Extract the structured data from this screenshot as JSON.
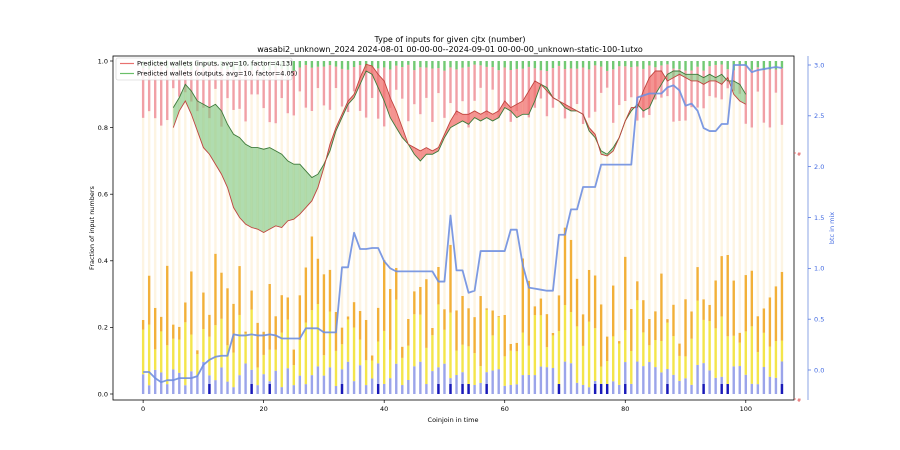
{
  "chart_data": {
    "type": "bar",
    "title": "Type of inputs for given cjtx (number)",
    "subtitle": "wasabi2_unknown_2024 2024-08-01 00-00-00--2024-09-01 00-00-00_unknown-static-100-1utxo",
    "xlabel": "Coinjoin in time",
    "ylabel": "Fraction of input numbers",
    "y2label": "btc in mix",
    "xlim": [
      -5,
      108
    ],
    "ylim": [
      0,
      1.0
    ],
    "y2lim": [
      -0.3,
      3.05
    ],
    "xticks": [
      0,
      20,
      40,
      60,
      80,
      100
    ],
    "yticks": [
      0.0,
      0.2,
      0.4,
      0.6,
      0.8,
      1.0
    ],
    "y2ticks": [
      0.0,
      0.5,
      1.0,
      1.5,
      2.0,
      2.5,
      3.0
    ],
    "grid": false,
    "legend_position": "top-left",
    "legend": [
      {
        "label": "Predicted wallets (inputs, avg=10, factor=4.13)",
        "color": "#e8716f"
      },
      {
        "label": "Predicted wallets (outputs, avg=10, factor=4.05)",
        "color": "#6abf69"
      }
    ],
    "stack_series": [
      {
        "name": "",
        "color": "#8a94e6"
      },
      {
        "name": "",
        "color": "#f2e12c"
      },
      {
        "name": "",
        "color": "#f0a216"
      },
      {
        "name": "",
        "color": "#fdf3df"
      },
      {
        "name": "",
        "color": "#ef8f96"
      },
      {
        "name": "",
        "color": "#59bf5a"
      }
    ],
    "right_axis_marks": [
      "#",
      "#"
    ],
    "inputs_wallets": [
      {
        "x": 5,
        "y": 0.8
      },
      {
        "x": 6,
        "y": 0.85
      },
      {
        "x": 7,
        "y": 0.88
      },
      {
        "x": 8,
        "y": 0.84
      },
      {
        "x": 9,
        "y": 0.79
      },
      {
        "x": 10,
        "y": 0.74
      },
      {
        "x": 11,
        "y": 0.72
      },
      {
        "x": 12,
        "y": 0.69
      },
      {
        "x": 13,
        "y": 0.66
      },
      {
        "x": 14,
        "y": 0.62
      },
      {
        "x": 15,
        "y": 0.56
      },
      {
        "x": 16,
        "y": 0.53
      },
      {
        "x": 17,
        "y": 0.51
      },
      {
        "x": 18,
        "y": 0.5
      },
      {
        "x": 19,
        "y": 0.495
      },
      {
        "x": 20,
        "y": 0.485
      },
      {
        "x": 21,
        "y": 0.495
      },
      {
        "x": 22,
        "y": 0.505
      },
      {
        "x": 23,
        "y": 0.5
      },
      {
        "x": 24,
        "y": 0.52
      },
      {
        "x": 25,
        "y": 0.525
      },
      {
        "x": 26,
        "y": 0.54
      },
      {
        "x": 27,
        "y": 0.56
      },
      {
        "x": 28,
        "y": 0.58
      },
      {
        "x": 29,
        "y": 0.62
      },
      {
        "x": 30,
        "y": 0.68
      },
      {
        "x": 31,
        "y": 0.75
      },
      {
        "x": 32,
        "y": 0.8
      },
      {
        "x": 33,
        "y": 0.84
      },
      {
        "x": 34,
        "y": 0.88
      },
      {
        "x": 35,
        "y": 0.9
      },
      {
        "x": 36,
        "y": 0.95
      },
      {
        "x": 37,
        "y": 0.99
      },
      {
        "x": 38,
        "y": 0.985
      },
      {
        "x": 39,
        "y": 0.96
      },
      {
        "x": 40,
        "y": 0.94
      },
      {
        "x": 41,
        "y": 0.89
      },
      {
        "x": 42,
        "y": 0.85
      },
      {
        "x": 43,
        "y": 0.8
      },
      {
        "x": 44,
        "y": 0.75
      },
      {
        "x": 45,
        "y": 0.74
      },
      {
        "x": 46,
        "y": 0.73
      },
      {
        "x": 47,
        "y": 0.74
      },
      {
        "x": 48,
        "y": 0.73
      },
      {
        "x": 49,
        "y": 0.74
      },
      {
        "x": 50,
        "y": 0.78
      },
      {
        "x": 51,
        "y": 0.82
      },
      {
        "x": 52,
        "y": 0.85
      },
      {
        "x": 53,
        "y": 0.84
      },
      {
        "x": 54,
        "y": 0.84
      },
      {
        "x": 55,
        "y": 0.85
      },
      {
        "x": 56,
        "y": 0.84
      },
      {
        "x": 57,
        "y": 0.85
      },
      {
        "x": 58,
        "y": 0.84
      },
      {
        "x": 59,
        "y": 0.85
      },
      {
        "x": 60,
        "y": 0.88
      },
      {
        "x": 61,
        "y": 0.86
      },
      {
        "x": 62,
        "y": 0.87
      },
      {
        "x": 63,
        "y": 0.88
      },
      {
        "x": 64,
        "y": 0.91
      },
      {
        "x": 65,
        "y": 0.94
      },
      {
        "x": 66,
        "y": 0.93
      },
      {
        "x": 67,
        "y": 0.91
      },
      {
        "x": 68,
        "y": 0.89
      },
      {
        "x": 69,
        "y": 0.88
      },
      {
        "x": 70,
        "y": 0.87
      },
      {
        "x": 71,
        "y": 0.86
      },
      {
        "x": 72,
        "y": 0.85
      },
      {
        "x": 73,
        "y": 0.84
      },
      {
        "x": 74,
        "y": 0.8
      },
      {
        "x": 75,
        "y": 0.78
      },
      {
        "x": 76,
        "y": 0.72
      },
      {
        "x": 77,
        "y": 0.715
      },
      {
        "x": 78,
        "y": 0.73
      },
      {
        "x": 79,
        "y": 0.77
      },
      {
        "x": 80,
        "y": 0.82
      },
      {
        "x": 81,
        "y": 0.86
      },
      {
        "x": 82,
        "y": 0.86
      },
      {
        "x": 83,
        "y": 0.91
      },
      {
        "x": 84,
        "y": 0.95
      },
      {
        "x": 85,
        "y": 0.97
      },
      {
        "x": 86,
        "y": 0.97
      },
      {
        "x": 87,
        "y": 0.94
      },
      {
        "x": 88,
        "y": 0.95
      },
      {
        "x": 89,
        "y": 0.96
      },
      {
        "x": 90,
        "y": 0.95
      },
      {
        "x": 91,
        "y": 0.94
      },
      {
        "x": 92,
        "y": 0.94
      },
      {
        "x": 93,
        "y": 0.93
      },
      {
        "x": 94,
        "y": 0.94
      },
      {
        "x": 95,
        "y": 0.94
      },
      {
        "x": 96,
        "y": 0.93
      },
      {
        "x": 97,
        "y": 0.95
      },
      {
        "x": 98,
        "y": 0.9
      },
      {
        "x": 99,
        "y": 0.88
      },
      {
        "x": 100,
        "y": 0.87
      }
    ],
    "outputs_wallets": [
      {
        "x": 5,
        "y": 0.86
      },
      {
        "x": 6,
        "y": 0.89
      },
      {
        "x": 7,
        "y": 0.93
      },
      {
        "x": 8,
        "y": 0.91
      },
      {
        "x": 9,
        "y": 0.88
      },
      {
        "x": 10,
        "y": 0.87
      },
      {
        "x": 11,
        "y": 0.86
      },
      {
        "x": 12,
        "y": 0.87
      },
      {
        "x": 13,
        "y": 0.85
      },
      {
        "x": 14,
        "y": 0.81
      },
      {
        "x": 15,
        "y": 0.78
      },
      {
        "x": 16,
        "y": 0.77
      },
      {
        "x": 17,
        "y": 0.75
      },
      {
        "x": 18,
        "y": 0.74
      },
      {
        "x": 19,
        "y": 0.74
      },
      {
        "x": 20,
        "y": 0.735
      },
      {
        "x": 21,
        "y": 0.74
      },
      {
        "x": 22,
        "y": 0.73
      },
      {
        "x": 23,
        "y": 0.72
      },
      {
        "x": 24,
        "y": 0.7
      },
      {
        "x": 25,
        "y": 0.69
      },
      {
        "x": 26,
        "y": 0.69
      },
      {
        "x": 27,
        "y": 0.67
      },
      {
        "x": 28,
        "y": 0.65
      },
      {
        "x": 29,
        "y": 0.66
      },
      {
        "x": 30,
        "y": 0.69
      },
      {
        "x": 31,
        "y": 0.73
      },
      {
        "x": 32,
        "y": 0.79
      },
      {
        "x": 33,
        "y": 0.83
      },
      {
        "x": 34,
        "y": 0.87
      },
      {
        "x": 35,
        "y": 0.89
      },
      {
        "x": 36,
        "y": 0.93
      },
      {
        "x": 37,
        "y": 0.97
      },
      {
        "x": 38,
        "y": 0.96
      },
      {
        "x": 39,
        "y": 0.92
      },
      {
        "x": 40,
        "y": 0.88
      },
      {
        "x": 41,
        "y": 0.83
      },
      {
        "x": 42,
        "y": 0.8
      },
      {
        "x": 43,
        "y": 0.77
      },
      {
        "x": 44,
        "y": 0.75
      },
      {
        "x": 45,
        "y": 0.72
      },
      {
        "x": 46,
        "y": 0.7
      },
      {
        "x": 47,
        "y": 0.72
      },
      {
        "x": 48,
        "y": 0.72
      },
      {
        "x": 49,
        "y": 0.73
      },
      {
        "x": 50,
        "y": 0.77
      },
      {
        "x": 51,
        "y": 0.8
      },
      {
        "x": 52,
        "y": 0.81
      },
      {
        "x": 53,
        "y": 0.82
      },
      {
        "x": 54,
        "y": 0.81
      },
      {
        "x": 55,
        "y": 0.83
      },
      {
        "x": 56,
        "y": 0.82
      },
      {
        "x": 57,
        "y": 0.83
      },
      {
        "x": 58,
        "y": 0.82
      },
      {
        "x": 59,
        "y": 0.83
      },
      {
        "x": 60,
        "y": 0.86
      },
      {
        "x": 61,
        "y": 0.85
      },
      {
        "x": 62,
        "y": 0.83
      },
      {
        "x": 63,
        "y": 0.84
      },
      {
        "x": 64,
        "y": 0.84
      },
      {
        "x": 65,
        "y": 0.88
      },
      {
        "x": 66,
        "y": 0.93
      },
      {
        "x": 67,
        "y": 0.92
      },
      {
        "x": 68,
        "y": 0.89
      },
      {
        "x": 69,
        "y": 0.88
      },
      {
        "x": 70,
        "y": 0.86
      },
      {
        "x": 71,
        "y": 0.85
      },
      {
        "x": 72,
        "y": 0.85
      },
      {
        "x": 73,
        "y": 0.84
      },
      {
        "x": 74,
        "y": 0.79
      },
      {
        "x": 75,
        "y": 0.77
      },
      {
        "x": 76,
        "y": 0.73
      },
      {
        "x": 77,
        "y": 0.72
      },
      {
        "x": 78,
        "y": 0.74
      },
      {
        "x": 79,
        "y": 0.77
      },
      {
        "x": 80,
        "y": 0.82
      },
      {
        "x": 81,
        "y": 0.85
      },
      {
        "x": 82,
        "y": 0.87
      },
      {
        "x": 83,
        "y": 0.85
      },
      {
        "x": 84,
        "y": 0.86
      },
      {
        "x": 85,
        "y": 0.9
      },
      {
        "x": 86,
        "y": 0.93
      },
      {
        "x": 87,
        "y": 0.96
      },
      {
        "x": 88,
        "y": 0.97
      },
      {
        "x": 89,
        "y": 0.97
      },
      {
        "x": 90,
        "y": 0.96
      },
      {
        "x": 91,
        "y": 0.96
      },
      {
        "x": 92,
        "y": 0.96
      },
      {
        "x": 93,
        "y": 0.95
      },
      {
        "x": 94,
        "y": 0.96
      },
      {
        "x": 95,
        "y": 0.95
      },
      {
        "x": 96,
        "y": 0.96
      },
      {
        "x": 97,
        "y": 0.94
      },
      {
        "x": 98,
        "y": 0.94
      },
      {
        "x": 99,
        "y": 0.93
      },
      {
        "x": 100,
        "y": 0.9
      }
    ],
    "btc_in_mix": [
      {
        "x": 0,
        "y": -0.02
      },
      {
        "x": 1,
        "y": -0.02
      },
      {
        "x": 2,
        "y": -0.08
      },
      {
        "x": 3,
        "y": -0.12
      },
      {
        "x": 4,
        "y": -0.1
      },
      {
        "x": 5,
        "y": -0.1
      },
      {
        "x": 6,
        "y": -0.08
      },
      {
        "x": 7,
        "y": -0.08
      },
      {
        "x": 8,
        "y": -0.08
      },
      {
        "x": 9,
        "y": -0.06
      },
      {
        "x": 10,
        "y": 0.05
      },
      {
        "x": 11,
        "y": 0.1
      },
      {
        "x": 12,
        "y": 0.13
      },
      {
        "x": 13,
        "y": 0.14
      },
      {
        "x": 14,
        "y": 0.14
      },
      {
        "x": 15,
        "y": 0.35
      },
      {
        "x": 16,
        "y": 0.34
      },
      {
        "x": 17,
        "y": 0.34
      },
      {
        "x": 18,
        "y": 0.35
      },
      {
        "x": 19,
        "y": 0.34
      },
      {
        "x": 20,
        "y": 0.34
      },
      {
        "x": 21,
        "y": 0.35
      },
      {
        "x": 22,
        "y": 0.34
      },
      {
        "x": 23,
        "y": 0.31
      },
      {
        "x": 24,
        "y": 0.31
      },
      {
        "x": 25,
        "y": 0.31
      },
      {
        "x": 26,
        "y": 0.31
      },
      {
        "x": 27,
        "y": 0.41
      },
      {
        "x": 28,
        "y": 0.41
      },
      {
        "x": 29,
        "y": 0.41
      },
      {
        "x": 30,
        "y": 0.37
      },
      {
        "x": 31,
        "y": 0.37
      },
      {
        "x": 32,
        "y": 0.37
      },
      {
        "x": 33,
        "y": 1.01
      },
      {
        "x": 34,
        "y": 1.01
      },
      {
        "x": 35,
        "y": 1.35
      },
      {
        "x": 36,
        "y": 1.19
      },
      {
        "x": 37,
        "y": 1.19
      },
      {
        "x": 38,
        "y": 1.2
      },
      {
        "x": 39,
        "y": 1.2
      },
      {
        "x": 40,
        "y": 1.07
      },
      {
        "x": 41,
        "y": 1.0
      },
      {
        "x": 42,
        "y": 0.97
      },
      {
        "x": 43,
        "y": 0.97
      },
      {
        "x": 44,
        "y": 0.97
      },
      {
        "x": 45,
        "y": 0.97
      },
      {
        "x": 46,
        "y": 0.97
      },
      {
        "x": 47,
        "y": 0.97
      },
      {
        "x": 48,
        "y": 0.97
      },
      {
        "x": 49,
        "y": 0.87
      },
      {
        "x": 50,
        "y": 0.87
      },
      {
        "x": 51,
        "y": 1.52
      },
      {
        "x": 52,
        "y": 0.98
      },
      {
        "x": 53,
        "y": 0.98
      },
      {
        "x": 54,
        "y": 0.76
      },
      {
        "x": 55,
        "y": 0.78
      },
      {
        "x": 56,
        "y": 1.17
      },
      {
        "x": 57,
        "y": 1.17
      },
      {
        "x": 58,
        "y": 1.17
      },
      {
        "x": 59,
        "y": 1.17
      },
      {
        "x": 60,
        "y": 1.17
      },
      {
        "x": 61,
        "y": 1.38
      },
      {
        "x": 62,
        "y": 1.38
      },
      {
        "x": 63,
        "y": 1.03
      },
      {
        "x": 64,
        "y": 0.81
      },
      {
        "x": 65,
        "y": 0.8
      },
      {
        "x": 66,
        "y": 0.79
      },
      {
        "x": 67,
        "y": 0.78
      },
      {
        "x": 68,
        "y": 0.78
      },
      {
        "x": 69,
        "y": 1.33
      },
      {
        "x": 70,
        "y": 1.33
      },
      {
        "x": 71,
        "y": 1.58
      },
      {
        "x": 72,
        "y": 1.58
      },
      {
        "x": 73,
        "y": 1.8
      },
      {
        "x": 74,
        "y": 1.8
      },
      {
        "x": 75,
        "y": 1.8
      },
      {
        "x": 76,
        "y": 2.02
      },
      {
        "x": 77,
        "y": 2.02
      },
      {
        "x": 78,
        "y": 2.02
      },
      {
        "x": 79,
        "y": 2.02
      },
      {
        "x": 80,
        "y": 2.02
      },
      {
        "x": 81,
        "y": 2.02
      },
      {
        "x": 82,
        "y": 2.68
      },
      {
        "x": 83,
        "y": 2.7
      },
      {
        "x": 84,
        "y": 2.72
      },
      {
        "x": 85,
        "y": 2.72
      },
      {
        "x": 86,
        "y": 2.72
      },
      {
        "x": 87,
        "y": 2.78
      },
      {
        "x": 88,
        "y": 2.8
      },
      {
        "x": 89,
        "y": 2.75
      },
      {
        "x": 90,
        "y": 2.6
      },
      {
        "x": 91,
        "y": 2.62
      },
      {
        "x": 92,
        "y": 2.55
      },
      {
        "x": 93,
        "y": 2.38
      },
      {
        "x": 94,
        "y": 2.35
      },
      {
        "x": 95,
        "y": 2.35
      },
      {
        "x": 96,
        "y": 2.42
      },
      {
        "x": 97,
        "y": 2.42
      },
      {
        "x": 98,
        "y": 3.0
      },
      {
        "x": 99,
        "y": 3.0
      },
      {
        "x": 100,
        "y": 3.0
      },
      {
        "x": 101,
        "y": 2.93
      },
      {
        "x": 102,
        "y": 2.95
      },
      {
        "x": 103,
        "y": 2.96
      },
      {
        "x": 104,
        "y": 2.97
      },
      {
        "x": 105,
        "y": 2.98
      },
      {
        "x": 106,
        "y": 2.97
      }
    ]
  }
}
